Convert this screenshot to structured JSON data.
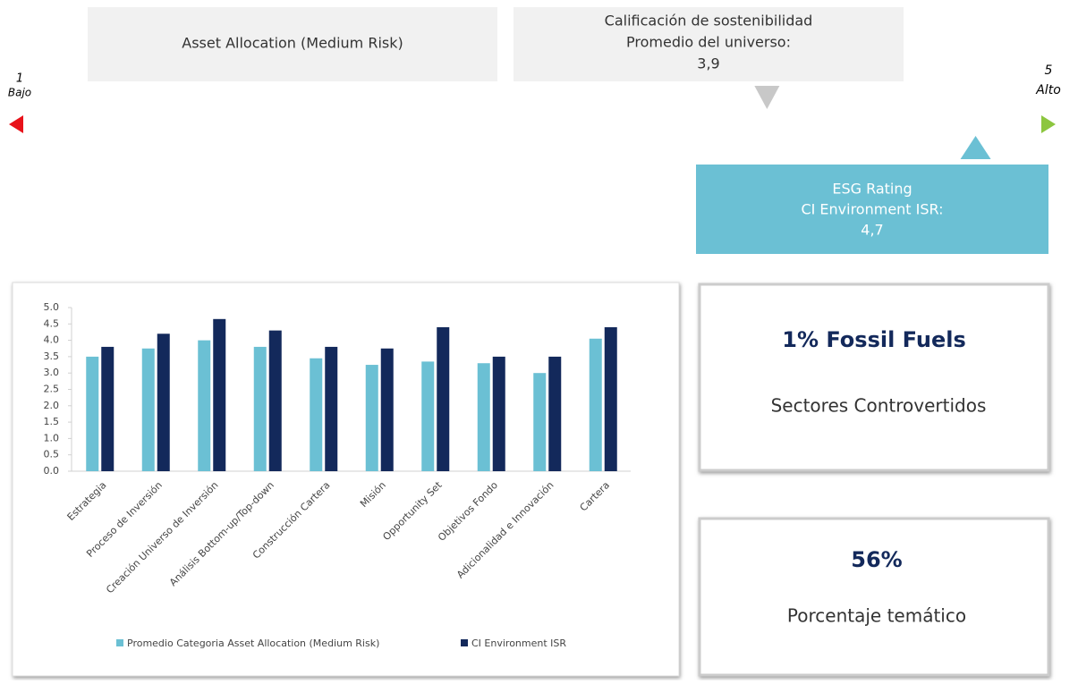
{
  "scale": {
    "min": 1,
    "max": 5,
    "min_label": "Bajo",
    "max_label": "Alto",
    "universe": {
      "title": "Calificación de sostenibilidad",
      "subtitle": "Promedio del universo:",
      "value": 3.9,
      "value_label": "3,9"
    },
    "fund": {
      "title": "ESG Rating",
      "subtitle": "CI Environment ISR:",
      "value": 4.7,
      "value_label": "4,7"
    }
  },
  "category_box": "Asset Allocation (Medium Risk)",
  "cards": [
    {
      "headline": "1% Fossil Fuels",
      "caption": "Sectores Controvertidos"
    },
    {
      "headline": "56%",
      "caption": "Porcentaje  temático"
    }
  ],
  "chart_data": {
    "type": "bar",
    "categories": [
      "Estrategia",
      "Proceso de Inversión",
      "Creación Universo de Inversión",
      "Análisis Bottom-up/Top-down",
      "Construcción Cartera",
      "Misión",
      "Opportunity Set",
      "Objetivos Fondo",
      "Adicionalidad e Innovación",
      "Cartera"
    ],
    "series": [
      {
        "name": "Promedio Categoria Asset Allocation (Medium Risk)",
        "color": "#6bc0d4",
        "values": [
          3.5,
          3.75,
          4.0,
          3.8,
          3.45,
          3.25,
          3.35,
          3.3,
          3.0,
          4.05
        ]
      },
      {
        "name": "CI Environment  ISR",
        "color": "#13295b",
        "values": [
          3.8,
          4.2,
          4.65,
          4.3,
          3.8,
          3.75,
          4.4,
          3.5,
          3.5,
          4.4
        ]
      }
    ],
    "ylim": [
      0,
      5
    ],
    "yticks": [
      {
        "value": 0,
        "label": "0.0"
      },
      {
        "value": 0.5,
        "label": "0.5"
      },
      {
        "value": 1,
        "label": "1.0"
      },
      {
        "value": 1.5,
        "label": "1.5"
      },
      {
        "value": 2,
        "label": "2.0"
      },
      {
        "value": 2.5,
        "label": "2.5"
      },
      {
        "value": 3,
        "label": "3.0"
      },
      {
        "value": 3.5,
        "label": "3.5"
      },
      {
        "value": 4,
        "label": "4.0"
      },
      {
        "value": 4.5,
        "label": "4.5"
      },
      {
        "value": 5,
        "label": "5.0"
      }
    ],
    "grid": false
  }
}
